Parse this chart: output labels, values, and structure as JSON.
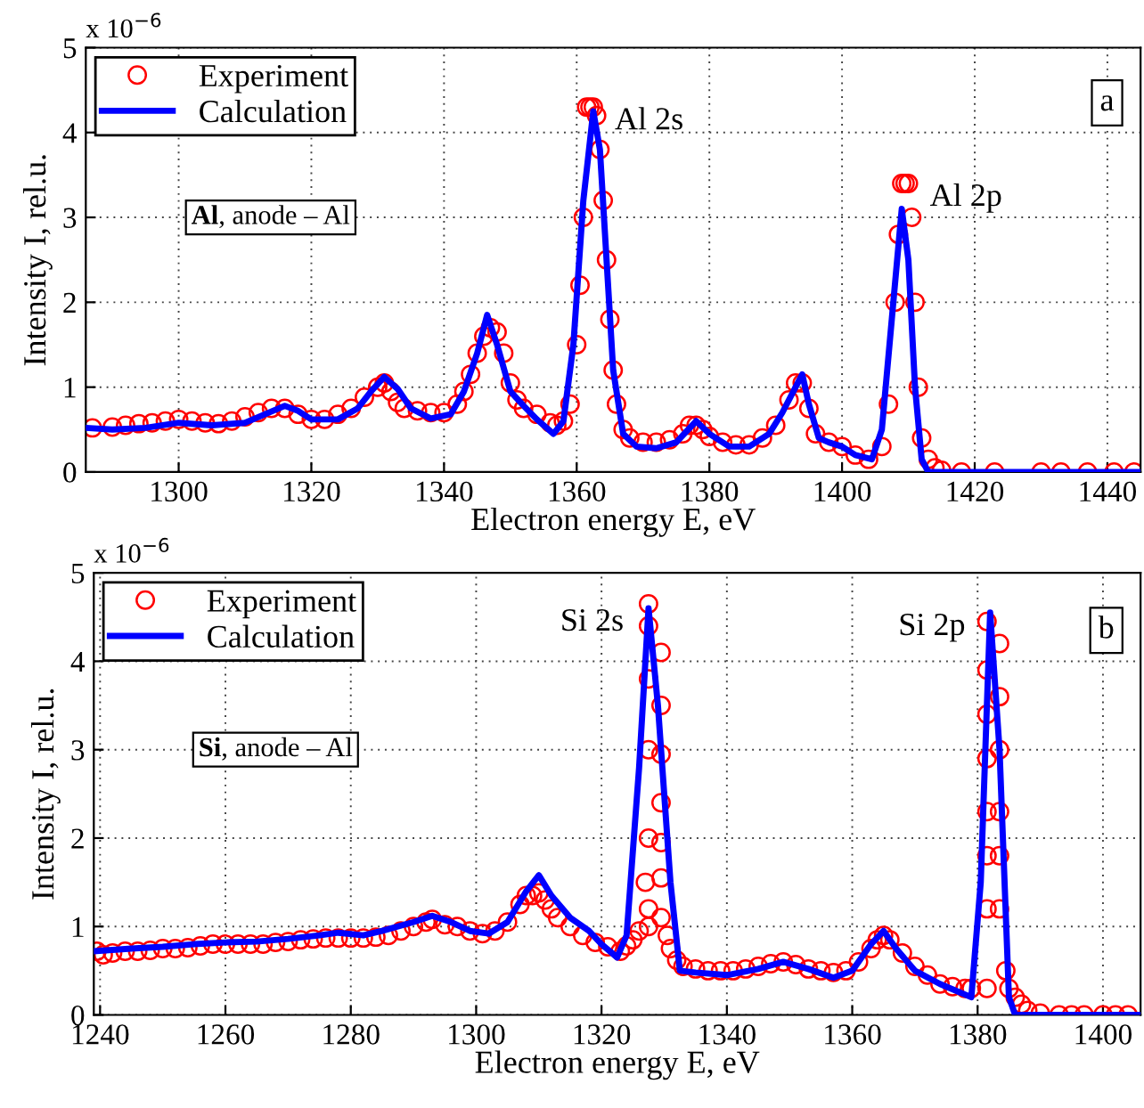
{
  "chart_data": [
    {
      "type": "scatter",
      "xlabel": "Electron energy E, eV",
      "ylabel": "Intensity I, rel.u.",
      "xlim": [
        1286,
        1445
      ],
      "xticks": [
        1300,
        1320,
        1340,
        1360,
        1380,
        1400,
        1420,
        1440
      ],
      "ylim": [
        0,
        5
      ],
      "yticks": [
        0,
        1,
        2,
        3,
        4,
        5
      ],
      "grid": true,
      "legend": "top left",
      "annotations": [
        "x 10$^{−6}$",
        "Al, anode – Al",
        "a",
        {
          "text": "Al 2s",
          "x": 1362,
          "y": 4.3
        },
        {
          "text": "Al 2p",
          "x": 1409.5,
          "y": 3.4
        }
      ],
      "series": [
        {
          "name": "Experiment",
          "marker": "circle",
          "color": "#ff0000",
          "x": [
            1287,
            1290,
            1292,
            1294,
            1296,
            1298,
            1300,
            1302,
            1304,
            1306,
            1308,
            1310,
            1312,
            1314,
            1316,
            1318,
            1320,
            1322,
            1324,
            1326,
            1328,
            1330,
            1331,
            1332,
            1333,
            1334,
            1336,
            1338,
            1340,
            1342,
            1343,
            1344,
            1345,
            1346,
            1347,
            1348,
            1349,
            1350,
            1351,
            1352,
            1354,
            1356,
            1357,
            1358,
            1359,
            1360,
            1360.5,
            1361,
            1361.5,
            1362,
            1362.5,
            1363,
            1363.5,
            1364,
            1364.5,
            1365,
            1365.5,
            1366,
            1367,
            1368,
            1370,
            1372,
            1374,
            1376,
            1377,
            1378,
            1379,
            1380,
            1382,
            1384,
            1386,
            1388,
            1390,
            1392,
            1393,
            1394,
            1395,
            1396,
            1398,
            1400,
            1402,
            1404,
            1406,
            1407,
            1408,
            1408.5,
            1409,
            1409.5,
            1410,
            1410.5,
            1411,
            1411.5,
            1412,
            1413,
            1414,
            1415,
            1418,
            1423,
            1430,
            1433,
            1437,
            1441,
            1444
          ],
          "values": [
            0.52,
            0.53,
            0.55,
            0.57,
            0.58,
            0.6,
            0.62,
            0.6,
            0.58,
            0.57,
            0.6,
            0.65,
            0.7,
            0.75,
            0.75,
            0.68,
            0.62,
            0.62,
            0.68,
            0.75,
            0.88,
            1.0,
            1.05,
            0.95,
            0.82,
            0.75,
            0.72,
            0.7,
            0.7,
            0.8,
            0.95,
            1.15,
            1.4,
            1.6,
            1.7,
            1.65,
            1.4,
            1.05,
            0.85,
            0.75,
            0.68,
            0.58,
            0.55,
            0.6,
            0.8,
            1.5,
            2.2,
            3.0,
            4.3,
            4.3,
            4.3,
            4.2,
            3.8,
            3.2,
            2.5,
            1.8,
            1.2,
            0.8,
            0.5,
            0.4,
            0.35,
            0.35,
            0.38,
            0.45,
            0.55,
            0.55,
            0.5,
            0.42,
            0.35,
            0.32,
            0.32,
            0.4,
            0.55,
            0.85,
            1.05,
            1.05,
            0.75,
            0.45,
            0.35,
            0.3,
            0.2,
            0.15,
            0.3,
            0.8,
            2.0,
            2.8,
            3.4,
            3.4,
            3.4,
            3.0,
            2.0,
            1.0,
            0.4,
            0.15,
            0.05,
            0.02,
            0,
            0,
            0,
            0,
            0,
            0,
            0
          ]
        },
        {
          "name": "Calculation",
          "type": "line",
          "marker": "none",
          "line_style": "solid",
          "color": "#0000ff",
          "x": [
            1286,
            1290,
            1295,
            1300,
            1305,
            1310,
            1313,
            1316,
            1318,
            1320,
            1324,
            1327,
            1329,
            1331,
            1333,
            1335,
            1338,
            1341,
            1343,
            1345,
            1346.5,
            1348,
            1350,
            1352,
            1354,
            1356.5,
            1358,
            1359.5,
            1361,
            1362.5,
            1363.5,
            1364.5,
            1365.5,
            1367,
            1369,
            1372,
            1375,
            1378,
            1380,
            1383,
            1386,
            1389,
            1391,
            1393,
            1394,
            1395,
            1396.5,
            1398,
            1400,
            1402,
            1404.5,
            1406,
            1407.5,
            1409,
            1410,
            1411,
            1412,
            1413,
            1445
          ],
          "values": [
            0.52,
            0.5,
            0.52,
            0.58,
            0.55,
            0.58,
            0.68,
            0.78,
            0.72,
            0.62,
            0.62,
            0.75,
            0.95,
            1.12,
            0.98,
            0.75,
            0.63,
            0.68,
            0.95,
            1.4,
            1.85,
            1.5,
            0.95,
            0.78,
            0.62,
            0.45,
            0.6,
            1.5,
            3.2,
            4.25,
            3.8,
            2.5,
            1.2,
            0.45,
            0.3,
            0.28,
            0.35,
            0.6,
            0.45,
            0.3,
            0.3,
            0.45,
            0.7,
            1.0,
            1.15,
            0.8,
            0.4,
            0.35,
            0.3,
            0.2,
            0.15,
            0.5,
            1.8,
            3.1,
            2.5,
            1.0,
            0.15,
            0,
            0
          ]
        }
      ]
    },
    {
      "type": "scatter",
      "xlabel": "Electron energy E, eV",
      "ylabel": "Intensity I, rel.u.",
      "xlim": [
        1239,
        1406
      ],
      "xticks": [
        1240,
        1260,
        1280,
        1300,
        1320,
        1340,
        1360,
        1380,
        1400
      ],
      "ylim": [
        0,
        5
      ],
      "yticks": [
        0,
        1,
        2,
        3,
        4,
        5
      ],
      "grid": true,
      "legend": "top left",
      "annotations": [
        "x 10$^{−6}$",
        "Si, anode – Al",
        "b",
        {
          "text": "Si 2s",
          "x": 1327.5,
          "y": 4.6
        },
        {
          "text": "Si 2p",
          "x": 1382,
          "y": 4.55
        }
      ],
      "series": [
        {
          "name": "Experiment",
          "marker": "circle",
          "color": "#ff0000",
          "x": [
            1239.5,
            1240.5,
            1242,
            1244,
            1246,
            1248,
            1250,
            1252,
            1254,
            1256,
            1258,
            1260,
            1262,
            1264,
            1266,
            1268,
            1270,
            1272,
            1274,
            1276,
            1278,
            1280,
            1282,
            1284,
            1286,
            1288,
            1290,
            1292,
            1293,
            1295,
            1297,
            1299,
            1301,
            1303,
            1305,
            1307,
            1308,
            1309,
            1310,
            1311,
            1312,
            1313,
            1315,
            1317,
            1319,
            1321,
            1323,
            1324,
            1325,
            1326,
            1327,
            1327.5,
            1327.5,
            1327.5,
            1327.5,
            1327.5,
            1327.5,
            1327.5,
            1329.5,
            1329.5,
            1329.5,
            1329.5,
            1329.5,
            1329.5,
            1329.5,
            1330.5,
            1331,
            1332,
            1333,
            1335,
            1337,
            1339,
            1341,
            1343,
            1345,
            1347,
            1349,
            1351,
            1353,
            1355,
            1357,
            1359,
            1361,
            1363,
            1364,
            1365,
            1366,
            1368,
            1370,
            1372,
            1374,
            1376,
            1378,
            1379,
            1381.5,
            1381.5,
            1381.5,
            1381.5,
            1381.5,
            1381.5,
            1381.5,
            1381.5,
            1383.5,
            1383.5,
            1383.5,
            1383.5,
            1383.5,
            1383.5,
            1384.5,
            1385,
            1386,
            1387,
            1388,
            1390,
            1393,
            1395,
            1397,
            1400,
            1402,
            1404
          ],
          "values": [
            0.72,
            0.68,
            0.7,
            0.72,
            0.72,
            0.73,
            0.75,
            0.75,
            0.76,
            0.78,
            0.8,
            0.8,
            0.8,
            0.8,
            0.8,
            0.82,
            0.83,
            0.85,
            0.86,
            0.87,
            0.87,
            0.87,
            0.87,
            0.88,
            0.9,
            0.95,
            1.0,
            1.05,
            1.08,
            1.02,
            1.0,
            0.95,
            0.92,
            0.95,
            1.05,
            1.25,
            1.35,
            1.35,
            1.38,
            1.3,
            1.2,
            1.1,
            1.0,
            0.9,
            0.82,
            0.77,
            0.72,
            0.78,
            0.85,
            0.95,
            1.5,
            4.65,
            4.4,
            3.8,
            3.0,
            2.0,
            1.2,
            1.0,
            4.1,
            3.5,
            2.95,
            2.4,
            1.95,
            1.55,
            1.1,
            0.9,
            0.75,
            0.62,
            0.55,
            0.52,
            0.5,
            0.5,
            0.5,
            0.52,
            0.55,
            0.58,
            0.6,
            0.57,
            0.52,
            0.5,
            0.48,
            0.5,
            0.6,
            0.75,
            0.85,
            0.9,
            0.85,
            0.7,
            0.55,
            0.45,
            0.35,
            0.32,
            0.3,
            0.3,
            4.45,
            3.9,
            3.4,
            2.9,
            2.3,
            1.8,
            1.2,
            0.3,
            4.2,
            3.6,
            3.0,
            2.3,
            1.8,
            1.2,
            0.5,
            0.3,
            0.2,
            0.12,
            0.05,
            0.02,
            0,
            0,
            0,
            0,
            0,
            0
          ]
        },
        {
          "name": "Calculation",
          "type": "line",
          "marker": "none",
          "line_style": "solid",
          "color": "#0000ff",
          "x": [
            1239,
            1245,
            1250,
            1255,
            1260,
            1265,
            1270,
            1275,
            1278,
            1282,
            1285,
            1290,
            1293,
            1296,
            1299,
            1302,
            1305,
            1308,
            1310,
            1312,
            1315,
            1318,
            1320,
            1322.5,
            1324,
            1326,
            1327.5,
            1329,
            1331,
            1332.5,
            1335,
            1340,
            1345,
            1349,
            1353,
            1357,
            1360,
            1363,
            1365,
            1367,
            1370,
            1374,
            1379,
            1380.5,
            1382,
            1383.5,
            1385,
            1386,
            1406
          ],
          "values": [
            0.72,
            0.75,
            0.77,
            0.8,
            0.82,
            0.83,
            0.86,
            0.9,
            0.93,
            0.9,
            0.95,
            1.05,
            1.12,
            1.05,
            0.95,
            0.92,
            1.05,
            1.4,
            1.58,
            1.35,
            1.1,
            0.95,
            0.8,
            0.65,
            0.9,
            2.8,
            4.6,
            3.5,
            1.5,
            0.5,
            0.48,
            0.45,
            0.52,
            0.6,
            0.52,
            0.42,
            0.5,
            0.8,
            0.95,
            0.75,
            0.5,
            0.35,
            0.2,
            1.5,
            4.55,
            3.0,
            0.2,
            0,
            0
          ]
        }
      ]
    }
  ]
}
